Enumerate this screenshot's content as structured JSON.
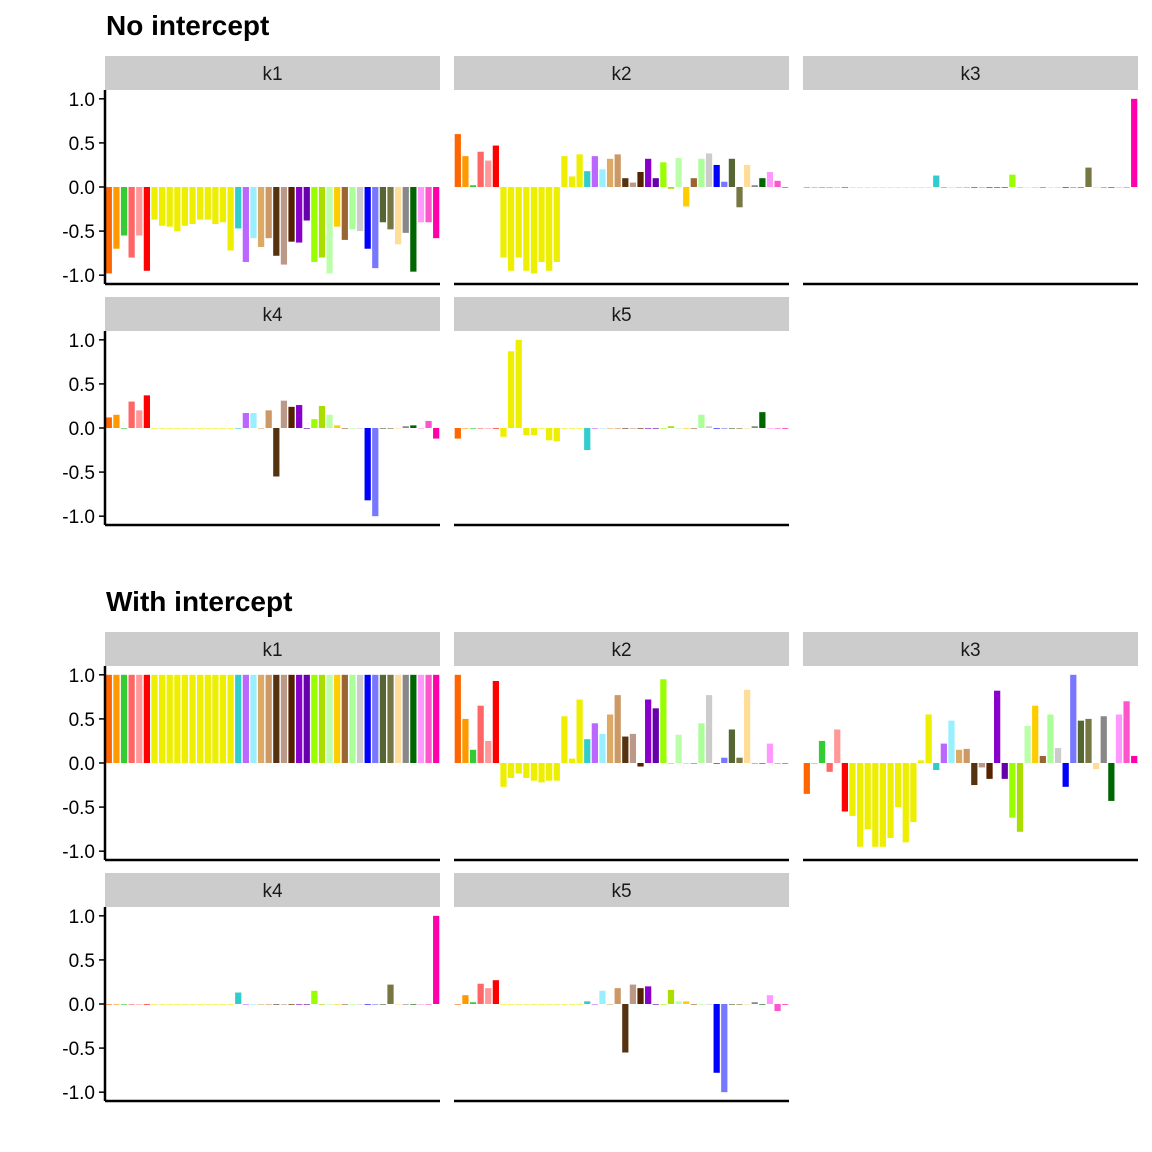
{
  "colors": {
    "palette": [
      "#FF6600",
      "#FF9900",
      "#33CC33",
      "#FF6666",
      "#FF9999",
      "#FF0000",
      "#EEEE00",
      "#EEEE00",
      "#EEEE00",
      "#EEEE00",
      "#EEEE00",
      "#EEEE00",
      "#EEEE00",
      "#EEEE00",
      "#EEEE00",
      "#EEEE00",
      "#EEEE00",
      "#33CCCC",
      "#BB66FF",
      "#99EEFF",
      "#DDAA66",
      "#CC9966",
      "#553311",
      "#BB9988",
      "#552200",
      "#8800CC",
      "#6600AA",
      "#99FF00",
      "#AADD00",
      "#BBFFAA",
      "#FFCC00",
      "#996633",
      "#AAFF99",
      "#CCCCCC",
      "#0000FF",
      "#7777FF",
      "#556633",
      "#777744",
      "#FFDD99",
      "#888888",
      "#006600",
      "#FF99FF",
      "#FF55CC",
      "#FF00AA"
    ],
    "strip_bg": "#CCCCCC"
  },
  "chart_data": [
    {
      "type": "bar",
      "title": "No intercept",
      "ylim": [
        -1.1,
        1.1
      ],
      "y_ticks": [
        "1.0",
        "0.5",
        "0.0",
        "-0.5",
        "-1.0"
      ],
      "panels": [
        {
          "name": "k1",
          "values": [
            -0.98,
            -0.7,
            -0.55,
            -0.8,
            -0.55,
            -0.95,
            -0.37,
            -0.44,
            -0.45,
            -0.5,
            -0.44,
            -0.42,
            -0.37,
            -0.37,
            -0.42,
            -0.4,
            -0.72,
            -0.47,
            -0.85,
            -0.58,
            -0.68,
            -0.58,
            -0.78,
            -0.88,
            -0.62,
            -0.63,
            -0.38,
            -0.85,
            -0.8,
            -0.98,
            -0.45,
            -0.6,
            -0.48,
            -0.5,
            -0.7,
            -0.92,
            -0.4,
            -0.48,
            -0.65,
            -0.52,
            -0.96,
            -0.4,
            -0.4,
            -0.58
          ]
        },
        {
          "name": "k2",
          "values": [
            0.6,
            0.35,
            0.02,
            0.4,
            0.3,
            0.47,
            -0.8,
            -0.95,
            -0.8,
            -0.95,
            -0.98,
            -0.85,
            -0.95,
            -0.85,
            0.35,
            0.12,
            0.37,
            0.18,
            0.35,
            0.2,
            0.32,
            0.37,
            0.1,
            0.05,
            0.17,
            0.32,
            0.1,
            0.28,
            -0.02,
            0.33,
            -0.22,
            0.1,
            0.32,
            0.38,
            0.25,
            0.06,
            0.32,
            -0.23,
            0.25,
            0.02,
            0.1,
            0.17,
            0.07,
            0.0
          ]
        },
        {
          "name": "k3",
          "values": [
            0.0,
            0.0,
            0.0,
            0.0,
            0.0,
            0.0,
            0.0,
            0.0,
            0.0,
            0.0,
            0.0,
            0.0,
            0.0,
            0.0,
            0.0,
            0.0,
            0.0,
            0.13,
            0.0,
            0.0,
            0.0,
            0.0,
            0.0,
            0.0,
            0.0,
            0.0,
            0.0,
            0.14,
            0.0,
            0.0,
            0.0,
            0.0,
            0.0,
            0.0,
            0.0,
            0.0,
            0.0,
            0.22,
            0.0,
            0.0,
            0.0,
            0.0,
            0.0,
            1.0
          ]
        },
        {
          "name": "k4",
          "values": [
            0.12,
            0.15,
            0.0,
            0.3,
            0.2,
            0.37,
            0.0,
            0.0,
            0.0,
            0.0,
            0.0,
            0.0,
            0.0,
            0.0,
            0.0,
            0.0,
            0.0,
            0.0,
            0.17,
            0.17,
            0.0,
            0.2,
            -0.55,
            0.31,
            0.24,
            0.26,
            0.0,
            0.1,
            0.25,
            0.15,
            0.03,
            0.0,
            0.0,
            0.0,
            -0.82,
            -1.0,
            0.0,
            0.0,
            0.0,
            0.02,
            0.03,
            0.0,
            0.08,
            -0.12
          ]
        },
        {
          "name": "k5",
          "values": [
            -0.12,
            0.0,
            0.0,
            0.0,
            0.0,
            0.0,
            -0.1,
            0.87,
            1.0,
            -0.08,
            -0.08,
            0.0,
            -0.14,
            -0.15,
            0.0,
            0.0,
            0.0,
            -0.25,
            0.0,
            0.0,
            0.0,
            0.0,
            0.0,
            0.0,
            0.0,
            0.0,
            0.0,
            0.0,
            0.02,
            0.0,
            0.0,
            0.0,
            0.15,
            0.02,
            0.0,
            0.0,
            0.0,
            0.0,
            0.0,
            0.02,
            0.18,
            0.0,
            0.0,
            0.0
          ]
        }
      ]
    },
    {
      "type": "bar",
      "title": "With intercept",
      "ylim": [
        -1.1,
        1.1
      ],
      "y_ticks": [
        "1.0",
        "0.5",
        "0.0",
        "-0.5",
        "-1.0"
      ],
      "panels": [
        {
          "name": "k1",
          "values": [
            1,
            1,
            1,
            1,
            1,
            1,
            1,
            1,
            1,
            1,
            1,
            1,
            1,
            1,
            1,
            1,
            1,
            1,
            1,
            1,
            1,
            1,
            1,
            1,
            1,
            1,
            1,
            1,
            1,
            1,
            1,
            1,
            1,
            1,
            1,
            1,
            1,
            1,
            1,
            1,
            1,
            1,
            1,
            1
          ]
        },
        {
          "name": "k2",
          "values": [
            1.0,
            0.5,
            0.15,
            0.65,
            0.25,
            0.93,
            -0.27,
            -0.17,
            -0.12,
            -0.17,
            -0.2,
            -0.22,
            -0.2,
            -0.2,
            0.53,
            0.05,
            0.72,
            0.27,
            0.45,
            0.33,
            0.55,
            0.77,
            0.3,
            0.33,
            -0.04,
            0.72,
            0.62,
            0.95,
            0.0,
            0.32,
            0.0,
            0.0,
            0.45,
            0.77,
            0.0,
            0.06,
            0.38,
            0.06,
            0.83,
            0.0,
            0.0,
            0.22,
            0.0,
            0.0
          ]
        },
        {
          "name": "k3",
          "values": [
            -0.35,
            0.0,
            0.25,
            -0.1,
            0.38,
            -0.55,
            -0.6,
            -0.95,
            -0.75,
            -0.95,
            -0.95,
            -0.85,
            -0.5,
            -0.9,
            -0.67,
            0.03,
            0.55,
            -0.08,
            0.22,
            0.48,
            0.15,
            0.16,
            -0.25,
            -0.05,
            -0.18,
            0.82,
            -0.18,
            -0.62,
            -0.78,
            0.42,
            0.65,
            0.08,
            0.55,
            0.17,
            -0.27,
            1.0,
            0.48,
            0.5,
            -0.07,
            0.53,
            -0.43,
            0.55,
            0.7,
            0.08
          ]
        },
        {
          "name": "k4",
          "values": [
            0.0,
            0.0,
            0.0,
            0.0,
            0.0,
            0.0,
            0.0,
            0.0,
            0.0,
            0.0,
            0.0,
            0.0,
            0.0,
            0.0,
            0.0,
            0.0,
            0.0,
            0.13,
            0.0,
            0.0,
            0.0,
            0.0,
            0.0,
            0.0,
            0.0,
            0.0,
            0.0,
            0.15,
            0.0,
            0.0,
            0.0,
            0.0,
            0.0,
            0.0,
            0.0,
            0.0,
            0.0,
            0.22,
            0.0,
            0.0,
            0.0,
            0.0,
            0.0,
            1.0
          ]
        },
        {
          "name": "k5",
          "values": [
            0.0,
            0.1,
            0.02,
            0.23,
            0.18,
            0.27,
            0.0,
            0.0,
            0.0,
            0.0,
            0.0,
            0.0,
            0.0,
            0.0,
            0.0,
            0.0,
            0.0,
            0.03,
            0.0,
            0.15,
            0.0,
            0.18,
            -0.55,
            0.22,
            0.18,
            0.2,
            0.0,
            0.0,
            0.16,
            0.03,
            0.03,
            0.0,
            0.0,
            0.0,
            -0.78,
            -1.0,
            0.0,
            0.0,
            0.0,
            0.02,
            0.0,
            0.1,
            -0.08,
            0.0
          ]
        }
      ]
    }
  ]
}
